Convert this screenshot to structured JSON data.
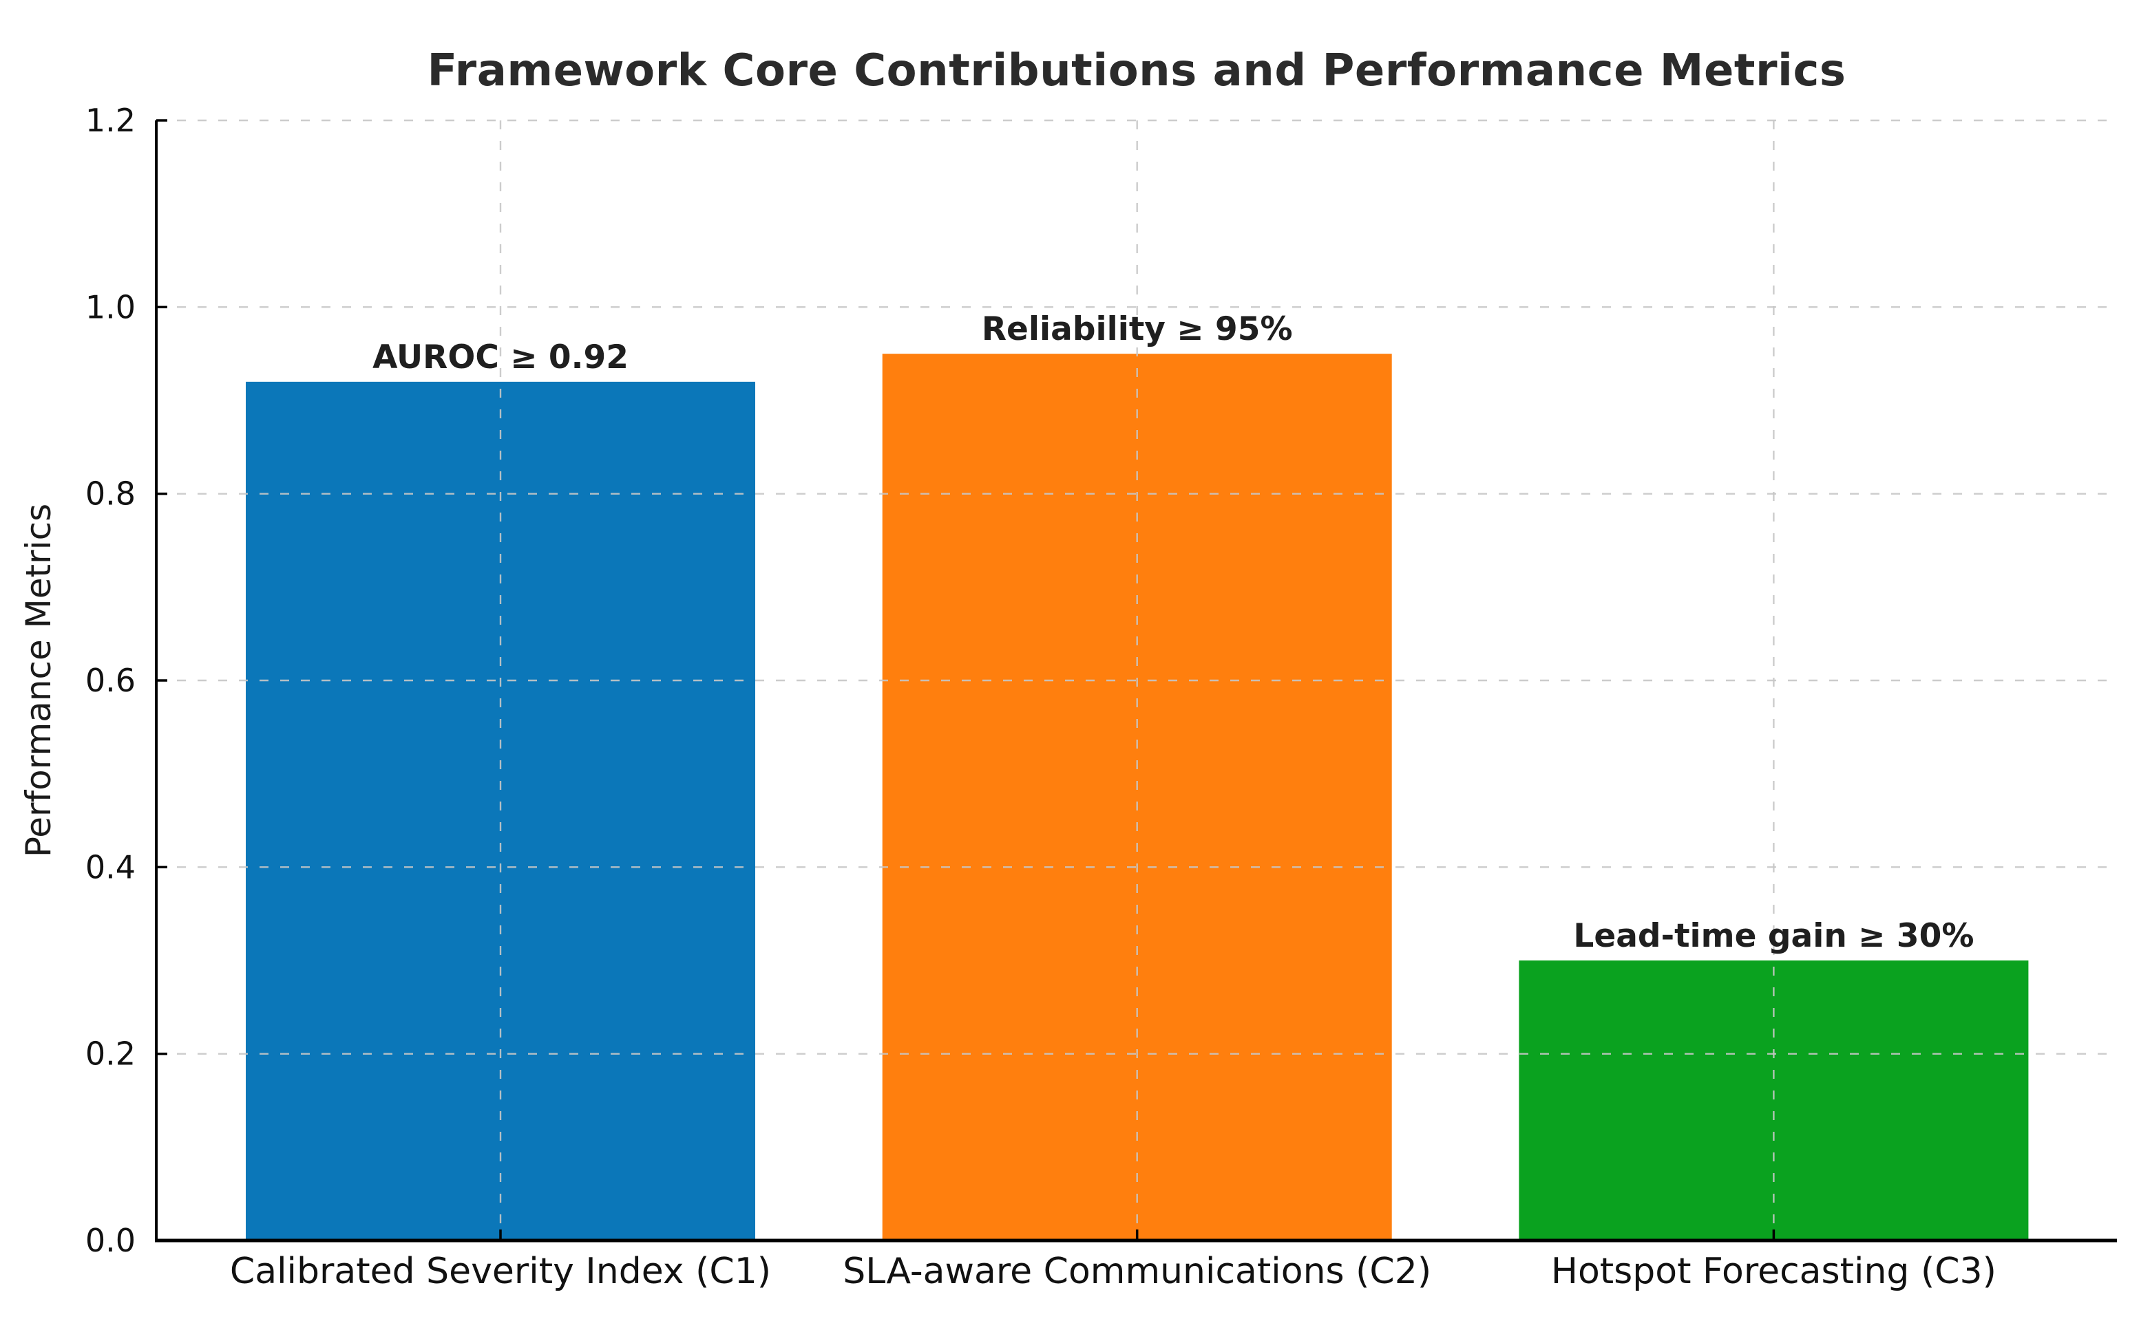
{
  "chart_data": {
    "type": "bar",
    "title": "Framework Core Contributions and Performance Metrics",
    "xlabel": "",
    "ylabel": "Performance Metrics",
    "categories": [
      "Calibrated Severity Index (C1)",
      "SLA-aware Communications (C2)",
      "Hotspot Forecasting (C3)"
    ],
    "values": [
      0.92,
      0.95,
      0.3
    ],
    "bar_annotations": [
      "AUROC ≥ 0.92",
      "Reliability ≥ 95%",
      "Lead-time gain ≥ 30%"
    ],
    "bar_colors": [
      "#0b77b9",
      "#ff7f0e",
      "#0aa21f"
    ],
    "ylim": [
      0.0,
      1.2
    ],
    "ytick_labels": [
      "0.0",
      "0.2",
      "0.4",
      "0.6",
      "0.8",
      "1.0",
      "1.2"
    ],
    "ytick_values": [
      0.0,
      0.2,
      0.4,
      0.6,
      0.8,
      1.0,
      1.2
    ],
    "grid": "dashed, both axes, drawn over bars",
    "legend_position": "none"
  },
  "style_colors": {
    "background": "#ffffff",
    "axis_color": "#000000",
    "grid_color": "#c6c6c6",
    "tick_label_color": "#111111",
    "annotation_color": "#1f1f1f",
    "title_color": "#2b2b2b"
  }
}
